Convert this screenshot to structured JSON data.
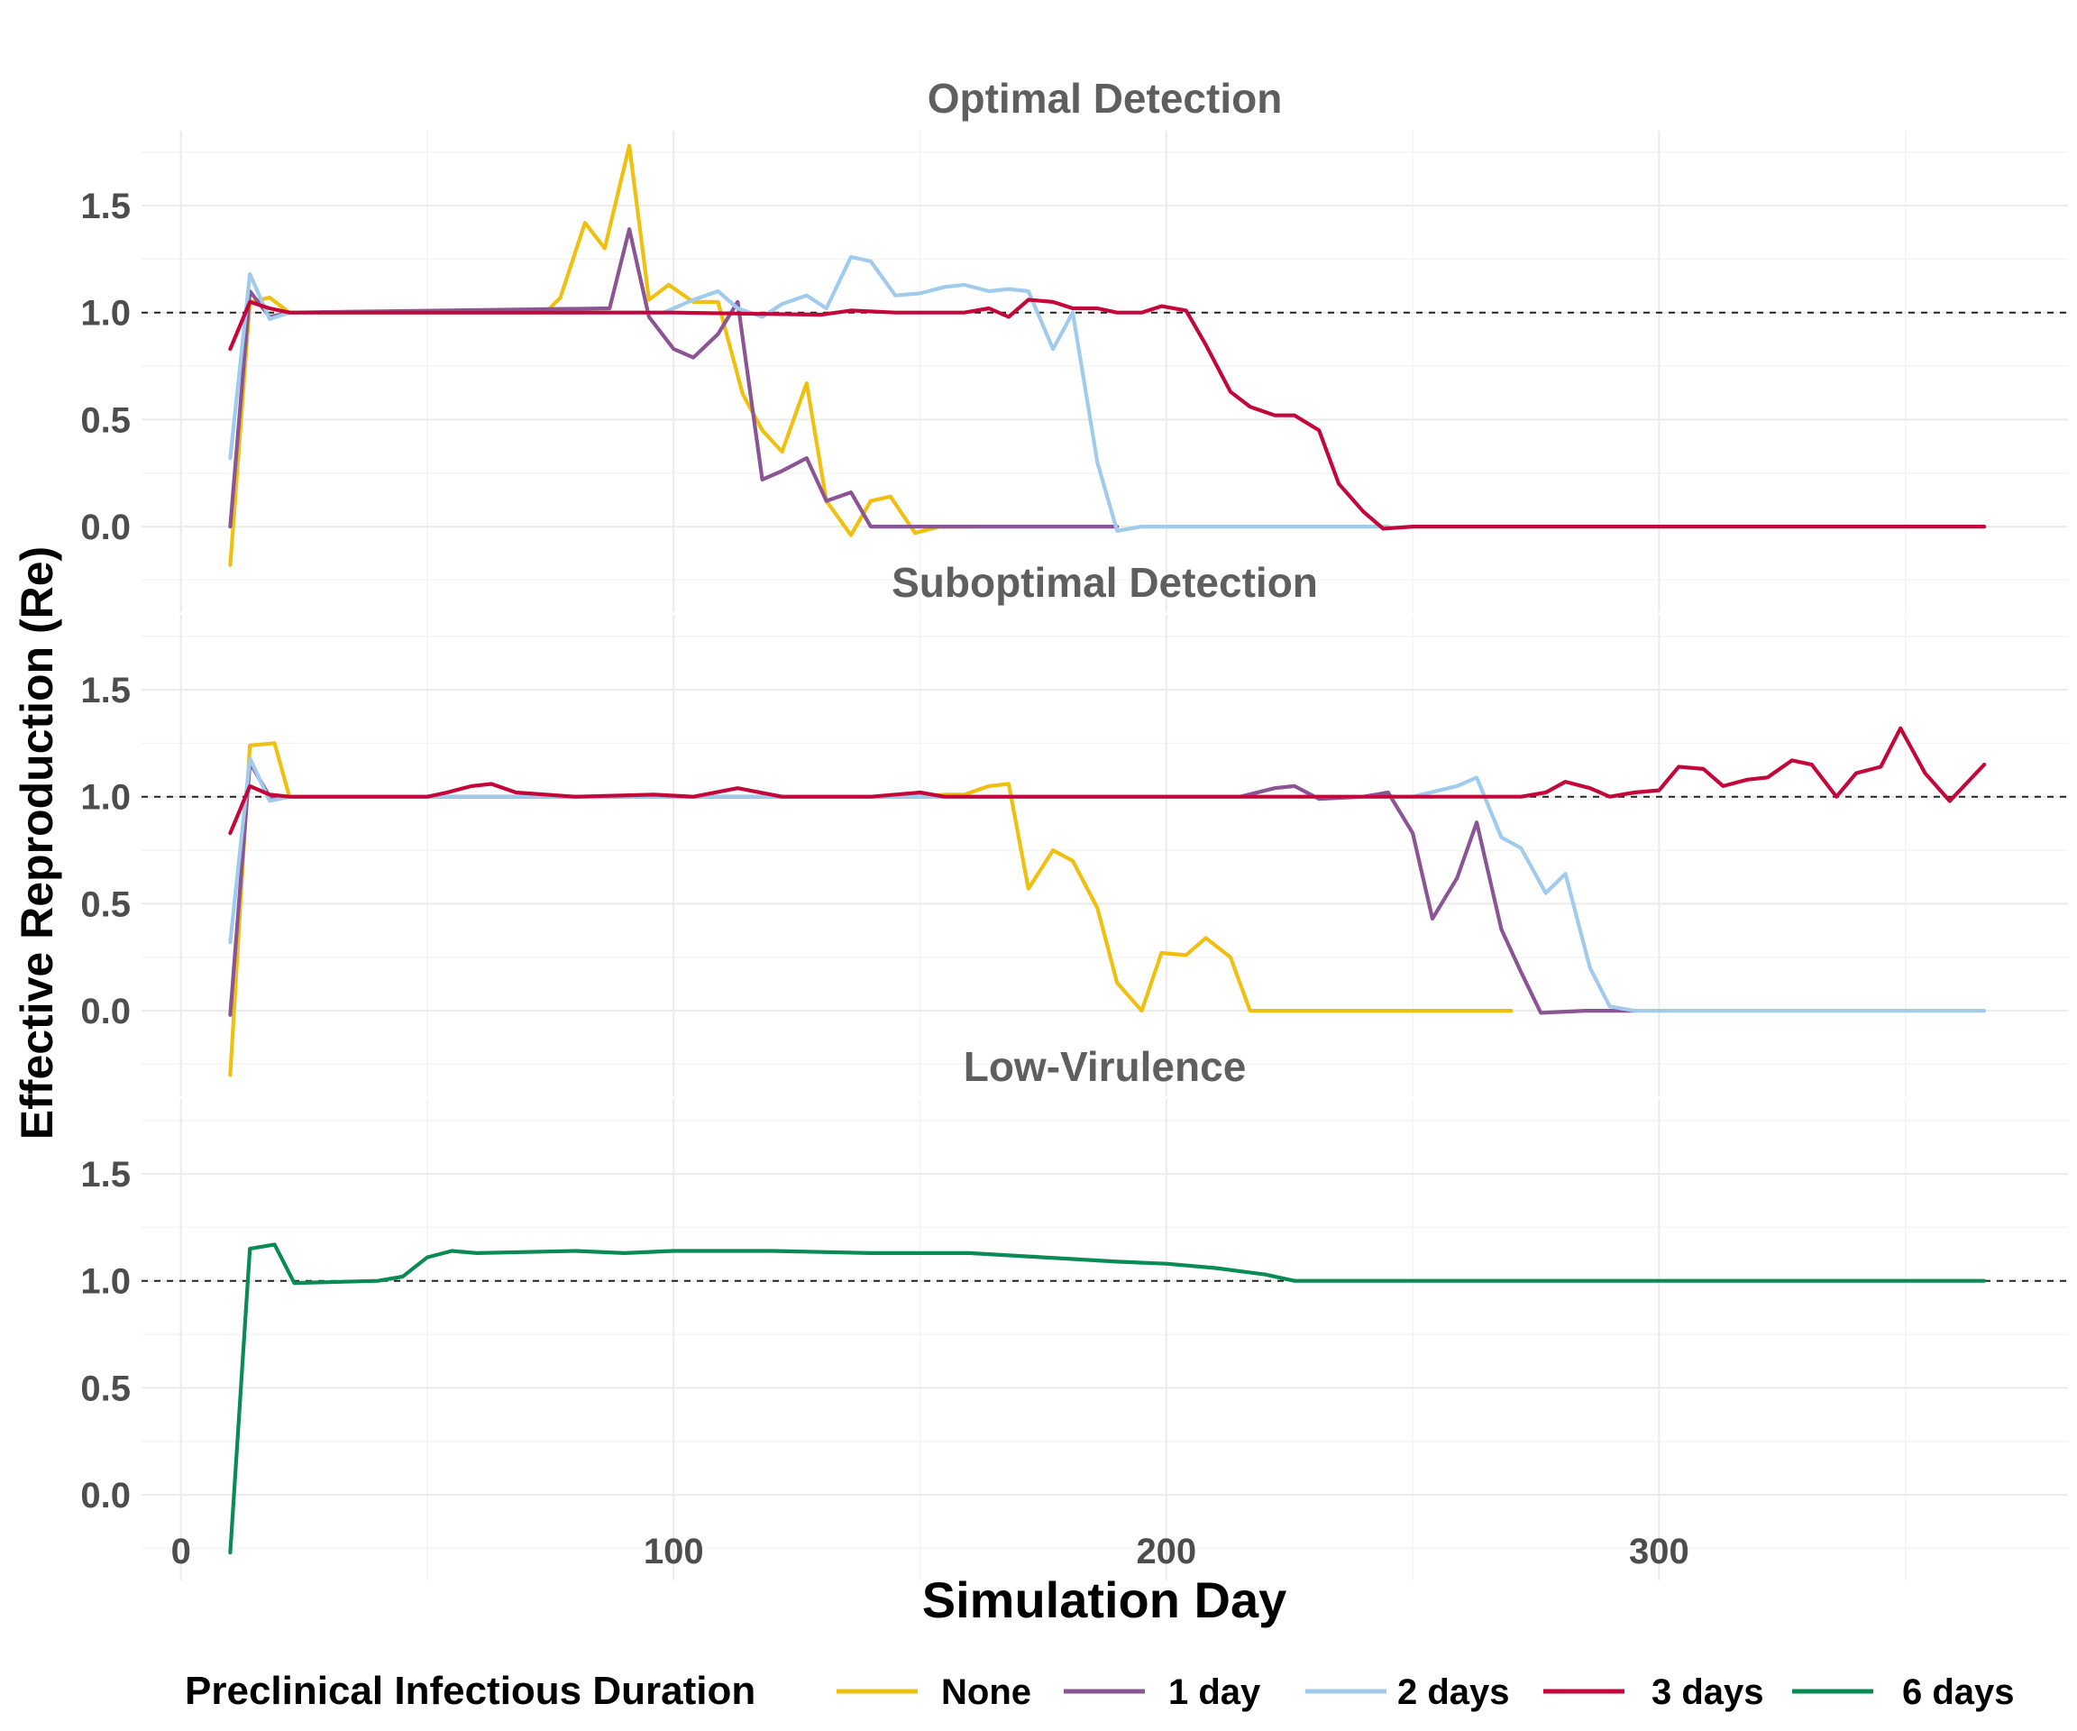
{
  "chart_data": {
    "type": "line",
    "xlabel": "Simulation Day",
    "ylabel": "Effective Reproduction (Re)",
    "xlim": [
      -8,
      383
    ],
    "ylim": [
      -0.4,
      1.85
    ],
    "x_ticks": [
      "0",
      "100",
      "200",
      "300"
    ],
    "y_ticks": [
      "0.0",
      "0.5",
      "1.0",
      "1.5"
    ],
    "reference_line_y": 1.0,
    "grid": true,
    "legend": {
      "title": "Preclinical Infectious Duration",
      "position": "bottom",
      "entries": [
        {
          "label": "None",
          "color": "#f0c010"
        },
        {
          "label": "1 day",
          "color": "#8b5494"
        },
        {
          "label": "2 days",
          "color": "#a0cbec"
        },
        {
          "label": "3 days",
          "color": "#c4073a"
        },
        {
          "label": "6 days",
          "color": "#0a8a54"
        }
      ]
    },
    "panels": [
      {
        "title": "Optimal Detection",
        "series": [
          {
            "name": "None",
            "color": "#f0c010",
            "points": [
              [
                10,
                -0.18
              ],
              [
                14,
                1.05
              ],
              [
                18,
                1.07
              ],
              [
                22,
                1.0
              ],
              [
                70,
                1.0
              ],
              [
                74,
                1.0
              ],
              [
                77,
                1.07
              ],
              [
                82,
                1.42
              ],
              [
                86,
                1.3
              ],
              [
                91,
                1.78
              ],
              [
                95,
                1.06
              ],
              [
                99,
                1.13
              ],
              [
                104,
                1.05
              ],
              [
                109,
                1.05
              ],
              [
                114,
                0.62
              ],
              [
                118,
                0.45
              ],
              [
                122,
                0.35
              ],
              [
                127,
                0.67
              ],
              [
                131,
                0.12
              ],
              [
                136,
                -0.04
              ],
              [
                140,
                0.12
              ],
              [
                144,
                0.14
              ],
              [
                149,
                -0.03
              ],
              [
                154,
                0.0
              ],
              [
                160,
                0.0
              ]
            ]
          },
          {
            "name": "1 day",
            "color": "#8b5494",
            "points": [
              [
                10,
                0.0
              ],
              [
                14,
                1.1
              ],
              [
                18,
                0.98
              ],
              [
                22,
                1.0
              ],
              [
                87,
                1.02
              ],
              [
                91,
                1.39
              ],
              [
                95,
                0.98
              ],
              [
                100,
                0.83
              ],
              [
                104,
                0.79
              ],
              [
                109,
                0.9
              ],
              [
                113,
                1.05
              ],
              [
                118,
                0.22
              ],
              [
                122,
                0.26
              ],
              [
                127,
                0.32
              ],
              [
                131,
                0.12
              ],
              [
                136,
                0.16
              ],
              [
                140,
                0.0
              ],
              [
                160,
                0.0
              ],
              [
                180,
                0.0
              ],
              [
                190,
                0.0
              ]
            ]
          },
          {
            "name": "2 days",
            "color": "#a0cbec",
            "points": [
              [
                10,
                0.32
              ],
              [
                14,
                1.18
              ],
              [
                18,
                0.97
              ],
              [
                22,
                1.0
              ],
              [
                98,
                1.0
              ],
              [
                104,
                1.06
              ],
              [
                109,
                1.1
              ],
              [
                113,
                1.02
              ],
              [
                118,
                0.98
              ],
              [
                122,
                1.04
              ],
              [
                127,
                1.08
              ],
              [
                131,
                1.02
              ],
              [
                136,
                1.26
              ],
              [
                140,
                1.24
              ],
              [
                145,
                1.08
              ],
              [
                150,
                1.09
              ],
              [
                155,
                1.12
              ],
              [
                159,
                1.13
              ],
              [
                164,
                1.1
              ],
              [
                168,
                1.11
              ],
              [
                172,
                1.1
              ],
              [
                177,
                0.83
              ],
              [
                181,
                1.0
              ],
              [
                186,
                0.3
              ],
              [
                190,
                -0.02
              ],
              [
                195,
                0.0
              ],
              [
                220,
                0.0
              ],
              [
                245,
                0.0
              ]
            ]
          },
          {
            "name": "3 days",
            "color": "#c4073a",
            "points": [
              [
                10,
                0.83
              ],
              [
                14,
                1.05
              ],
              [
                18,
                1.02
              ],
              [
                22,
                1.0
              ],
              [
                100,
                1.0
              ],
              [
                130,
                0.99
              ],
              [
                136,
                1.01
              ],
              [
                145,
                1.0
              ],
              [
                159,
                1.0
              ],
              [
                164,
                1.02
              ],
              [
                168,
                0.98
              ],
              [
                172,
                1.06
              ],
              [
                177,
                1.05
              ],
              [
                181,
                1.02
              ],
              [
                186,
                1.02
              ],
              [
                190,
                1.0
              ],
              [
                195,
                1.0
              ],
              [
                199,
                1.03
              ],
              [
                204,
                1.01
              ],
              [
                208,
                0.85
              ],
              [
                213,
                0.63
              ],
              [
                217,
                0.56
              ],
              [
                222,
                0.52
              ],
              [
                226,
                0.52
              ],
              [
                231,
                0.45
              ],
              [
                235,
                0.2
              ],
              [
                240,
                0.07
              ],
              [
                244,
                -0.01
              ],
              [
                250,
                0.0
              ],
              [
                300,
                0.0
              ],
              [
                350,
                0.0
              ],
              [
                366,
                0.0
              ]
            ]
          }
        ]
      },
      {
        "title": "Suboptimal Detection",
        "series": [
          {
            "name": "None",
            "color": "#f0c010",
            "points": [
              [
                10,
                -0.3
              ],
              [
                14,
                1.24
              ],
              [
                19,
                1.25
              ],
              [
                22,
                1.0
              ],
              [
                150,
                1.0
              ],
              [
                155,
                1.01
              ],
              [
                159,
                1.01
              ],
              [
                164,
                1.05
              ],
              [
                168,
                1.06
              ],
              [
                172,
                0.57
              ],
              [
                177,
                0.75
              ],
              [
                181,
                0.7
              ],
              [
                186,
                0.48
              ],
              [
                190,
                0.13
              ],
              [
                195,
                0.0
              ],
              [
                199,
                0.27
              ],
              [
                204,
                0.26
              ],
              [
                208,
                0.34
              ],
              [
                213,
                0.25
              ],
              [
                217,
                0.0
              ],
              [
                240,
                0.0
              ],
              [
                270,
                0.0
              ]
            ]
          },
          {
            "name": "1 day",
            "color": "#8b5494",
            "points": [
              [
                10,
                -0.02
              ],
              [
                14,
                1.16
              ],
              [
                18,
                1.0
              ],
              [
                22,
                1.0
              ],
              [
                215,
                1.0
              ],
              [
                222,
                1.04
              ],
              [
                226,
                1.05
              ],
              [
                231,
                0.99
              ],
              [
                240,
                1.0
              ],
              [
                245,
                1.02
              ],
              [
                250,
                0.83
              ],
              [
                254,
                0.43
              ],
              [
                259,
                0.62
              ],
              [
                263,
                0.88
              ],
              [
                268,
                0.38
              ],
              [
                272,
                0.18
              ],
              [
                276,
                -0.01
              ],
              [
                285,
                0.0
              ],
              [
                295,
                0.0
              ]
            ]
          },
          {
            "name": "2 days",
            "color": "#a0cbec",
            "points": [
              [
                10,
                0.32
              ],
              [
                14,
                1.18
              ],
              [
                18,
                0.98
              ],
              [
                22,
                1.0
              ],
              [
                250,
                1.0
              ],
              [
                259,
                1.05
              ],
              [
                263,
                1.09
              ],
              [
                268,
                0.81
              ],
              [
                272,
                0.76
              ],
              [
                277,
                0.55
              ],
              [
                281,
                0.64
              ],
              [
                286,
                0.2
              ],
              [
                290,
                0.02
              ],
              [
                295,
                0.0
              ],
              [
                366,
                0.0
              ]
            ]
          },
          {
            "name": "3 days",
            "color": "#c4073a",
            "points": [
              [
                10,
                0.83
              ],
              [
                14,
                1.05
              ],
              [
                18,
                1.01
              ],
              [
                22,
                1.0
              ],
              [
                50,
                1.0
              ],
              [
                54,
                1.02
              ],
              [
                59,
                1.05
              ],
              [
                63,
                1.06
              ],
              [
                68,
                1.02
              ],
              [
                80,
                1.0
              ],
              [
                96,
                1.01
              ],
              [
                104,
                1.0
              ],
              [
                113,
                1.04
              ],
              [
                122,
                1.0
              ],
              [
                140,
                1.0
              ],
              [
                150,
                1.02
              ],
              [
                155,
                1.0
              ],
              [
                200,
                1.0
              ],
              [
                260,
                1.0
              ],
              [
                272,
                1.0
              ],
              [
                277,
                1.02
              ],
              [
                281,
                1.07
              ],
              [
                286,
                1.04
              ],
              [
                290,
                1.0
              ],
              [
                295,
                1.02
              ],
              [
                300,
                1.03
              ],
              [
                304,
                1.14
              ],
              [
                309,
                1.13
              ],
              [
                313,
                1.05
              ],
              [
                318,
                1.08
              ],
              [
                322,
                1.09
              ],
              [
                327,
                1.17
              ],
              [
                331,
                1.15
              ],
              [
                336,
                1.0
              ],
              [
                340,
                1.11
              ],
              [
                345,
                1.14
              ],
              [
                349,
                1.32
              ],
              [
                354,
                1.11
              ],
              [
                359,
                0.98
              ],
              [
                366,
                1.15
              ]
            ]
          }
        ]
      },
      {
        "title": "Low-Virulence",
        "series": [
          {
            "name": "6 days",
            "color": "#0a8a54",
            "points": [
              [
                10,
                -0.27
              ],
              [
                14,
                1.15
              ],
              [
                19,
                1.17
              ],
              [
                23,
                0.99
              ],
              [
                40,
                1.0
              ],
              [
                45,
                1.02
              ],
              [
                50,
                1.11
              ],
              [
                55,
                1.14
              ],
              [
                60,
                1.13
              ],
              [
                80,
                1.14
              ],
              [
                90,
                1.13
              ],
              [
                100,
                1.14
              ],
              [
                120,
                1.14
              ],
              [
                140,
                1.13
              ],
              [
                160,
                1.13
              ],
              [
                175,
                1.11
              ],
              [
                190,
                1.09
              ],
              [
                200,
                1.08
              ],
              [
                210,
                1.06
              ],
              [
                220,
                1.03
              ],
              [
                226,
                1.0
              ],
              [
                250,
                1.0
              ],
              [
                300,
                1.0
              ],
              [
                366,
                1.0
              ]
            ]
          }
        ]
      }
    ]
  }
}
